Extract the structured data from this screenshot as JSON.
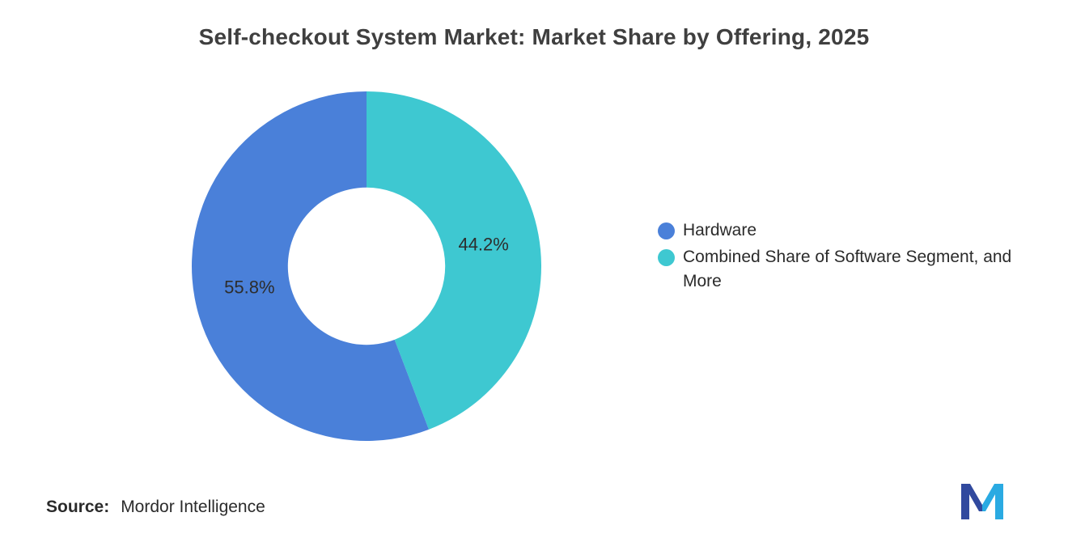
{
  "page": {
    "background": "#ffffff"
  },
  "title": "Self-checkout System Market: Market Share by Offering, 2025",
  "chart_data": {
    "type": "pie",
    "subtype": "donut",
    "title": "Self-checkout System Market: Market Share by Offering, 2025",
    "direction": "counterclockwise",
    "start_angle_deg": 0,
    "inner_radius_ratio": 0.45,
    "legend_position": "right",
    "value_suffix": "%",
    "segments": [
      {
        "label": "Hardware",
        "value": 55.8,
        "color": "#4A80D9",
        "data_label": "55.8%"
      },
      {
        "label": "Combined Share of Software Segment, and More",
        "value": 44.2,
        "color": "#3EC8D1",
        "data_label": "44.2%"
      }
    ]
  },
  "footer": {
    "source_label": "Source:",
    "source_text": "Mordor Intelligence"
  },
  "logo": {
    "name": "mordor-intelligence-logo",
    "color_dark": "#31499E",
    "color_light": "#2AAAE2"
  }
}
